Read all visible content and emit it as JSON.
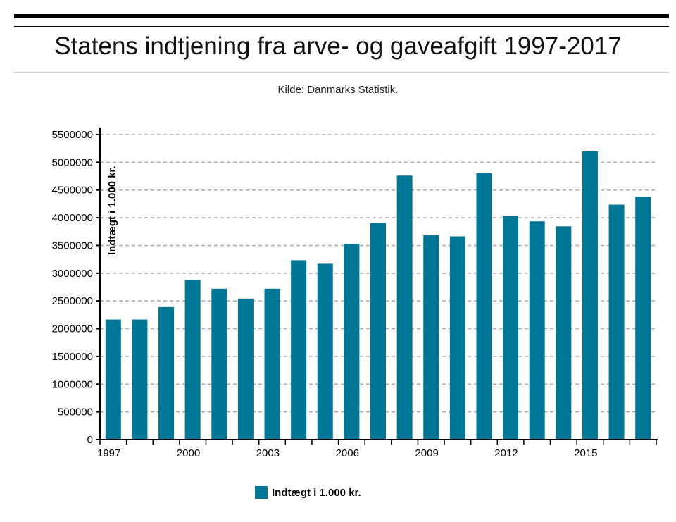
{
  "title": "Statens indtjening fra arve- og gaveafgift 1997-2017",
  "subtitle": "Kilde: Danmarks Statistik.",
  "colors": {
    "bar": "#007796"
  },
  "chart_data": {
    "type": "bar",
    "title": "Statens indtjening fra arve- og gaveafgift 1997-2017",
    "subtitle": "Kilde: Danmarks Statistik.",
    "xlabel": "",
    "ylabel": "Indtægt i 1.000 kr.",
    "ylim": [
      0,
      5500000
    ],
    "yticks": [
      "0",
      "500000",
      "1000000",
      "1500000",
      "2000000",
      "2500000",
      "3000000",
      "3500000",
      "4000000",
      "4500000",
      "5000000",
      "5500000"
    ],
    "xticks": [
      "1997",
      "2000",
      "2003",
      "2006",
      "2009",
      "2012",
      "2015"
    ],
    "categories": [
      "1997",
      "1998",
      "1999",
      "2000",
      "2001",
      "2002",
      "2003",
      "2004",
      "2005",
      "2006",
      "2007",
      "2008",
      "2009",
      "2010",
      "2011",
      "2012",
      "2013",
      "2014",
      "2015",
      "2016",
      "2017"
    ],
    "series": [
      {
        "name": "Indtægt i 1.000 kr.",
        "values": [
          2165000,
          2165000,
          2390000,
          2878000,
          2721000,
          2543000,
          2721000,
          3234000,
          3170000,
          3527000,
          3905000,
          4760000,
          3685000,
          3665000,
          4805000,
          4030000,
          3935000,
          3845000,
          5195000,
          4235000,
          4375000
        ]
      }
    ],
    "grid": true,
    "legend": "bottom"
  }
}
